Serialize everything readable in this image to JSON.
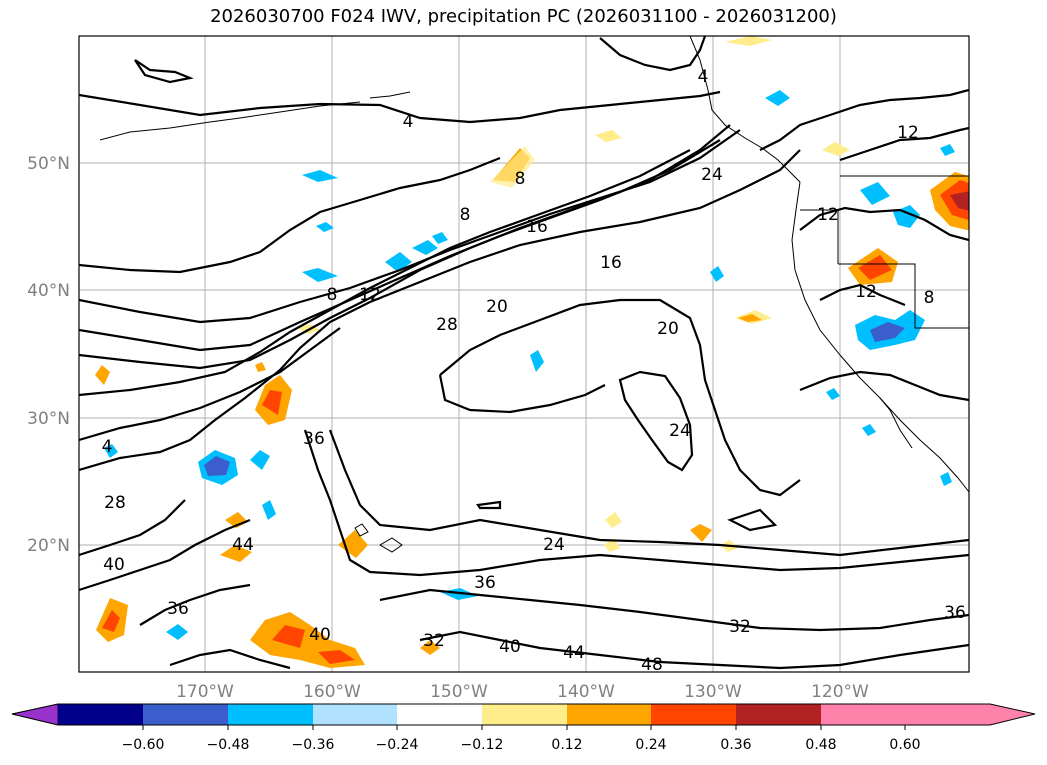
{
  "title": "2026030700 F024 IWV, precipitation PC (2026031100 - 2026031200)",
  "lat_labels": [
    "50°N",
    "40°N",
    "30°N",
    "20°N"
  ],
  "lon_labels": [
    "170°W",
    "160°W",
    "150°W",
    "140°W",
    "130°W",
    "120°W"
  ],
  "colorbar": {
    "colors": [
      "#9932cc",
      "#00008b",
      "#3a5fcd",
      "#00bfff",
      "#b0e2ff",
      "#ffffff",
      "#ffec8b",
      "#ffa500",
      "#ff4500",
      "#b22222",
      "#ff82ab"
    ],
    "tick_labels": [
      "−0.60",
      "−0.48",
      "−0.36",
      "−0.24",
      "−0.12",
      "0.12",
      "0.24",
      "0.36",
      "0.48",
      "0.60"
    ]
  },
  "contour_labels": [
    "4",
    "4",
    "8",
    "8",
    "8",
    "12",
    "12",
    "12",
    "16",
    "16",
    "20",
    "20",
    "24",
    "24",
    "24",
    "28",
    "28",
    "32",
    "32",
    "36",
    "36",
    "36",
    "36",
    "40",
    "40",
    "40",
    "44",
    "44",
    "48",
    "4",
    "12",
    "8"
  ]
}
